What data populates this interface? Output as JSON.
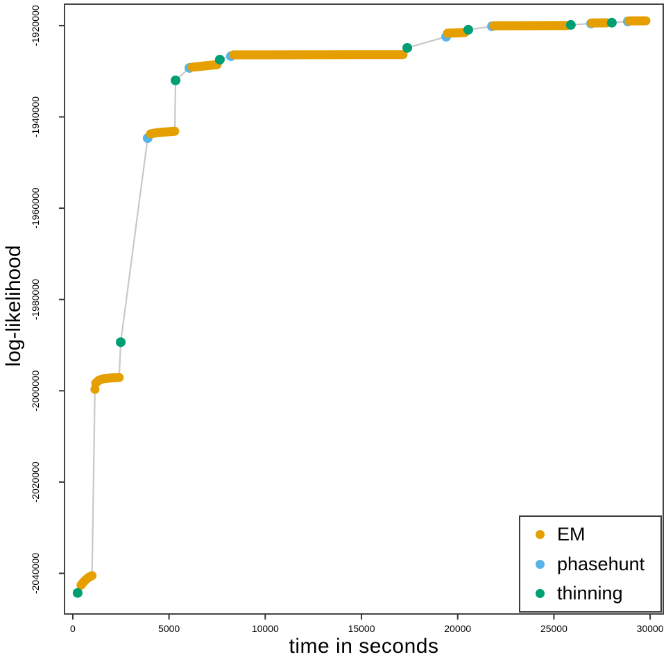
{
  "chart_data": {
    "type": "scatter",
    "title": "",
    "xlabel": "time in seconds",
    "ylabel": "log-likelihood",
    "xlim": [
      -430,
      30680
    ],
    "ylim": [
      -2048900,
      -1915300
    ],
    "grid": false,
    "legend_position": "bottom-right",
    "x_ticks": [
      {
        "v": 0,
        "label": "0"
      },
      {
        "v": 5000,
        "label": "5000"
      },
      {
        "v": 10000,
        "label": "10000"
      },
      {
        "v": 15000,
        "label": "15000"
      },
      {
        "v": 20000,
        "label": "20000"
      },
      {
        "v": 25000,
        "label": "25000"
      },
      {
        "v": 30000,
        "label": "30000"
      }
    ],
    "y_ticks": [
      {
        "v": -1920000,
        "label": "-1920000"
      },
      {
        "v": -1940000,
        "label": "-1940000"
      },
      {
        "v": -1960000,
        "label": "-1960000"
      },
      {
        "v": -1980000,
        "label": "-1980000"
      },
      {
        "v": -2000000,
        "label": "-2000000"
      },
      {
        "v": -2020000,
        "label": "-2020000"
      },
      {
        "v": -2040000,
        "label": "-2040000"
      }
    ],
    "series_colors": {
      "EM": "#E69F00",
      "phasehunt": "#56B4E9",
      "thinning": "#009E73"
    },
    "connector_color": "#c8c8c8",
    "frame_color": "#444444",
    "tick_color": "#333333",
    "legend": {
      "items": [
        {
          "label": "EM",
          "series": "EM",
          "color": "#E69F00"
        },
        {
          "label": "phasehunt",
          "series": "phasehunt",
          "color": "#56B4E9"
        },
        {
          "label": "thinning",
          "series": "thinning",
          "color": "#009E73"
        }
      ]
    },
    "segments": [
      {
        "series": "thinning",
        "pts": [
          [
            250,
            -2044300
          ]
        ]
      },
      {
        "series": "EM",
        "pts": [
          [
            430,
            -2042600
          ],
          [
            560,
            -2041900
          ],
          [
            700,
            -2041300
          ],
          [
            850,
            -2040800
          ],
          [
            1000,
            -2040500
          ]
        ]
      },
      {
        "series": "EM",
        "pts": [
          [
            1150,
            -1999700
          ]
        ]
      },
      {
        "series": "EM",
        "pts": [
          [
            1190,
            -1998350
          ],
          [
            1350,
            -1997700
          ],
          [
            1600,
            -1997350
          ],
          [
            1950,
            -1997200
          ],
          [
            2410,
            -1997100
          ]
        ]
      },
      {
        "series": "thinning",
        "pts": [
          [
            2490,
            -1989350
          ]
        ]
      },
      {
        "series": "phasehunt",
        "pts": [
          [
            3890,
            -1944640
          ]
        ]
      },
      {
        "series": "EM",
        "pts": [
          [
            4040,
            -1943700
          ],
          [
            4400,
            -1943450
          ],
          [
            4800,
            -1943300
          ],
          [
            5300,
            -1943150
          ]
        ]
      },
      {
        "series": "thinning",
        "pts": [
          [
            5340,
            -1932000
          ]
        ]
      },
      {
        "series": "phasehunt",
        "pts": [
          [
            6060,
            -1929280
          ]
        ]
      },
      {
        "series": "EM",
        "pts": [
          [
            6200,
            -1929100
          ],
          [
            6800,
            -1928850
          ],
          [
            7500,
            -1928550
          ]
        ]
      },
      {
        "series": "thinning",
        "pts": [
          [
            7640,
            -1927450
          ]
        ]
      },
      {
        "series": "phasehunt",
        "pts": [
          [
            8220,
            -1926690
          ]
        ]
      },
      {
        "series": "EM",
        "pts": [
          [
            8360,
            -1926400
          ],
          [
            12000,
            -1926380
          ],
          [
            17160,
            -1926350
          ]
        ]
      },
      {
        "series": "thinning",
        "pts": [
          [
            17380,
            -1924870
          ]
        ]
      },
      {
        "series": "phasehunt",
        "pts": [
          [
            19400,
            -1922430
          ]
        ]
      },
      {
        "series": "EM",
        "pts": [
          [
            19470,
            -1921670
          ],
          [
            20370,
            -1921520
          ]
        ]
      },
      {
        "series": "thinning",
        "pts": [
          [
            20550,
            -1920910
          ]
        ]
      },
      {
        "series": "phasehunt",
        "pts": [
          [
            21780,
            -1920150
          ]
        ]
      },
      {
        "series": "EM",
        "pts": [
          [
            21880,
            -1920030
          ],
          [
            25670,
            -1919980
          ]
        ]
      },
      {
        "series": "thinning",
        "pts": [
          [
            25880,
            -1919850
          ]
        ]
      },
      {
        "series": "phasehunt",
        "pts": [
          [
            26930,
            -1919540
          ]
        ]
      },
      {
        "series": "EM",
        "pts": [
          [
            26960,
            -1919430
          ],
          [
            27760,
            -1919380
          ]
        ]
      },
      {
        "series": "thinning",
        "pts": [
          [
            28010,
            -1919360
          ]
        ]
      },
      {
        "series": "phasehunt",
        "pts": [
          [
            28840,
            -1919090
          ]
        ]
      },
      {
        "series": "EM",
        "pts": [
          [
            28910,
            -1918970
          ],
          [
            29780,
            -1918940
          ]
        ]
      }
    ]
  }
}
